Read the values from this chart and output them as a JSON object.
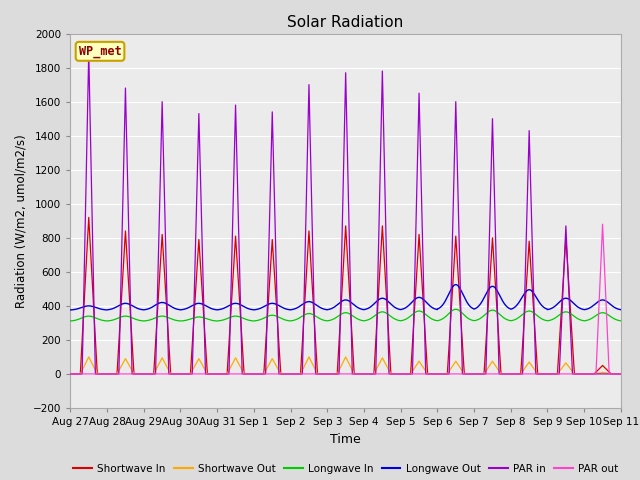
{
  "title": "Solar Radiation",
  "xlabel": "Time",
  "ylabel": "Radiation (W/m2, umol/m2/s)",
  "ylim": [
    -200,
    2000
  ],
  "yticks": [
    -200,
    0,
    200,
    400,
    600,
    800,
    1000,
    1200,
    1400,
    1600,
    1800,
    2000
  ],
  "fig_bg": "#dcdcdc",
  "plot_bg": "#ebebeb",
  "legend_label": "WP_met",
  "series": {
    "shortwave_in": {
      "label": "Shortwave In",
      "color": "#dd0000"
    },
    "shortwave_out": {
      "label": "Shortwave Out",
      "color": "#ffaa00"
    },
    "longwave_in": {
      "label": "Longwave In",
      "color": "#00cc00"
    },
    "longwave_out": {
      "label": "Longwave Out",
      "color": "#0000dd"
    },
    "par_in": {
      "label": "PAR in",
      "color": "#9900cc"
    },
    "par_out": {
      "label": "PAR out",
      "color": "#ff44cc"
    }
  },
  "n_days": 15,
  "day_peaks": {
    "shortwave_in": [
      920,
      840,
      820,
      790,
      810,
      790,
      840,
      870,
      870,
      820,
      810,
      800,
      780,
      800,
      50
    ],
    "shortwave_out": [
      100,
      90,
      95,
      90,
      95,
      90,
      100,
      100,
      95,
      75,
      75,
      75,
      70,
      65,
      10
    ],
    "longwave_in": [
      340,
      340,
      340,
      335,
      340,
      345,
      355,
      360,
      365,
      370,
      380,
      375,
      370,
      365,
      360
    ],
    "longwave_out": [
      400,
      415,
      420,
      415,
      415,
      415,
      425,
      435,
      445,
      450,
      525,
      515,
      495,
      445,
      435
    ],
    "par_in": [
      1890,
      1680,
      1600,
      1530,
      1580,
      1540,
      1700,
      1770,
      1780,
      1650,
      1600,
      1500,
      1430,
      870,
      0
    ],
    "par_out_day": [
      0,
      0,
      0,
      0,
      0,
      0,
      0,
      0,
      0,
      0,
      0,
      0,
      0,
      0,
      880
    ]
  },
  "lw_in_night": 310,
  "lw_out_night": 375,
  "x_tick_labels": [
    "Aug 27",
    "Aug 28",
    "Aug 29",
    "Aug 30",
    "Aug 31",
    "Sep 1",
    "Sep 2",
    "Sep 3",
    "Sep 4",
    "Sep 5",
    "Sep 6",
    "Sep 7",
    "Sep 8",
    "Sep 9",
    "Sep 10",
    "Sep 11"
  ]
}
